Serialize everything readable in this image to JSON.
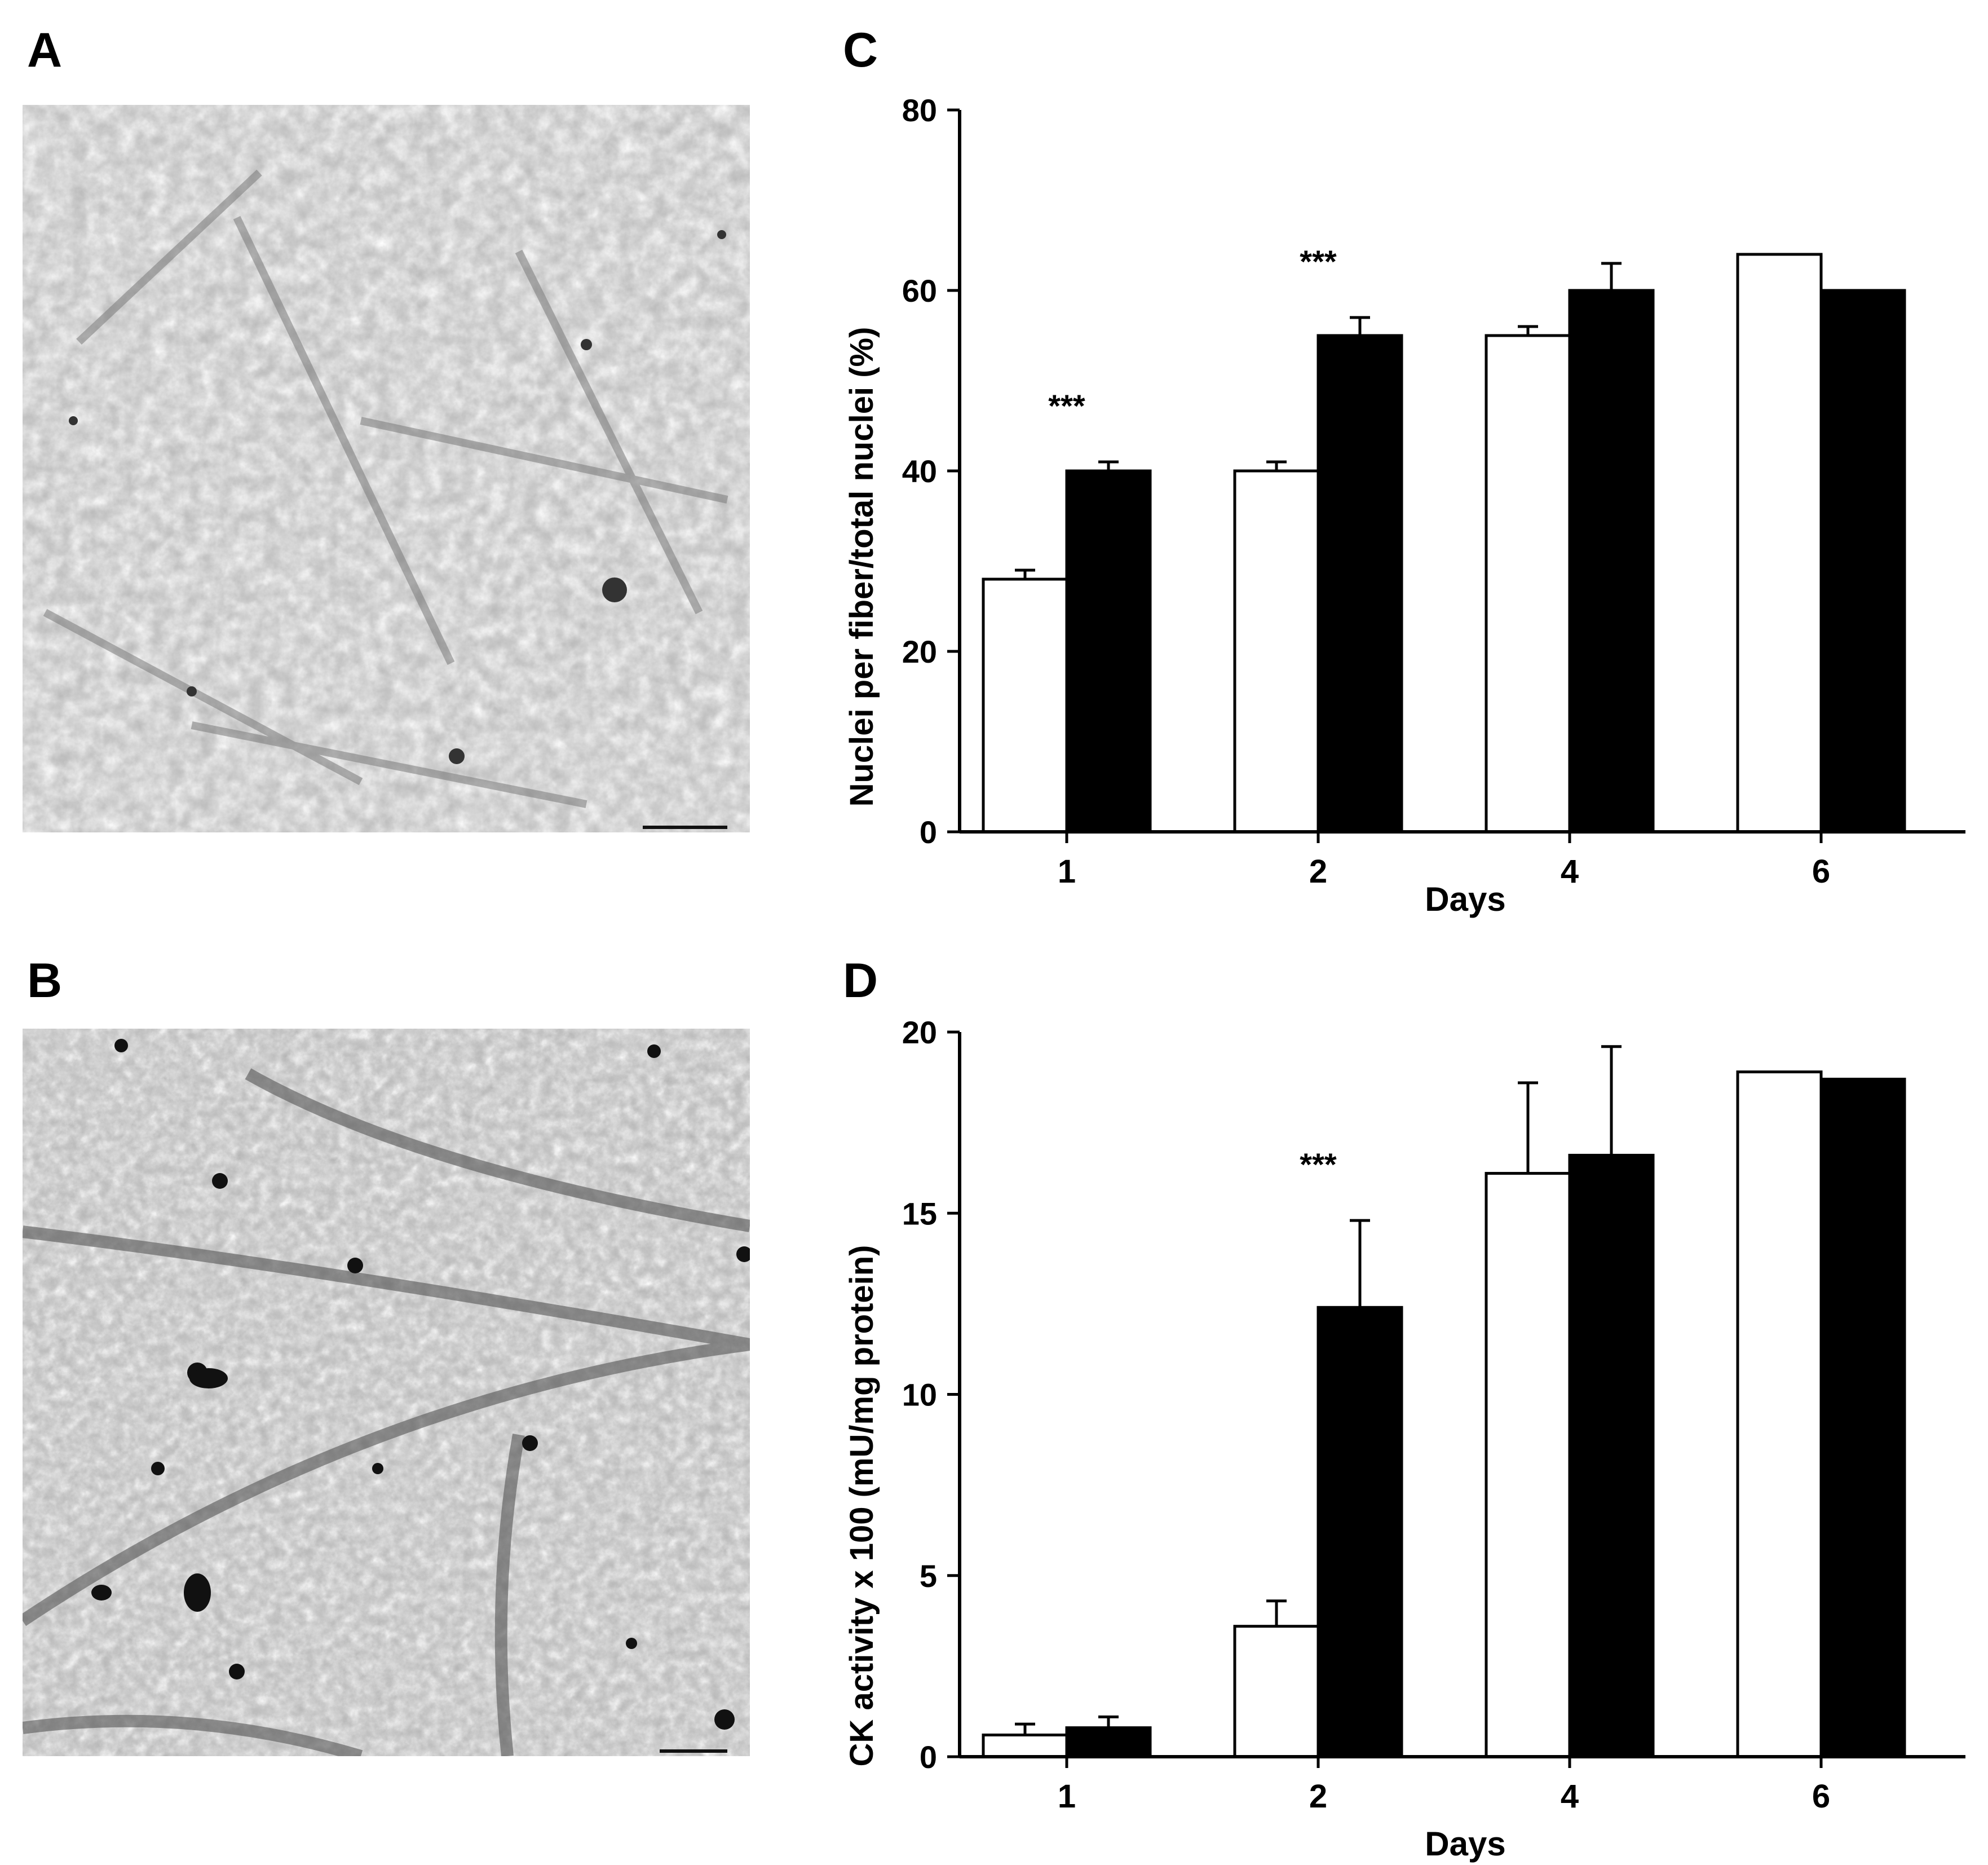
{
  "panels": {
    "a": "A",
    "b": "B",
    "c": "C",
    "d": "D"
  },
  "colors": {
    "series_1": "#ffffff",
    "series_2": "#000000",
    "axis": "#000000"
  },
  "chart_data": [
    {
      "type": "bar",
      "panel": "C",
      "title": "",
      "xlabel": "Days",
      "ylabel": "Nuclei  per fiber/total nuclei (%)",
      "categories": [
        "1",
        "2",
        "4",
        "6"
      ],
      "ylim": [
        0,
        80
      ],
      "yticks": [
        0,
        20,
        40,
        60,
        80
      ],
      "series": [
        {
          "color": "#ffffff",
          "values": [
            28,
            40,
            55,
            64
          ],
          "errors": [
            1,
            1,
            1,
            0
          ]
        },
        {
          "color": "#000000",
          "values": [
            40,
            55,
            60,
            60
          ],
          "errors": [
            1,
            2,
            3,
            0
          ]
        }
      ],
      "annotations": [
        {
          "category": "1",
          "text": "***"
        },
        {
          "category": "2",
          "text": "***"
        }
      ],
      "grid": false,
      "legend": "none"
    },
    {
      "type": "bar",
      "panel": "D",
      "title": "",
      "xlabel": "Days",
      "ylabel": "CK activity x 100 (mU/mg protein)",
      "categories": [
        "1",
        "2",
        "4",
        "6"
      ],
      "ylim": [
        0,
        20
      ],
      "yticks": [
        0,
        5,
        10,
        15,
        20
      ],
      "series": [
        {
          "color": "#ffffff",
          "values": [
            0.6,
            3.6,
            16.1,
            18.9
          ],
          "errors": [
            0.3,
            0.7,
            2.5,
            0
          ]
        },
        {
          "color": "#000000",
          "values": [
            0.8,
            12.4,
            16.6,
            18.7
          ],
          "errors": [
            0.3,
            2.4,
            3.0,
            0
          ]
        }
      ],
      "annotations": [
        {
          "category": "2",
          "text": "***"
        }
      ],
      "grid": false,
      "legend": "none"
    }
  ]
}
